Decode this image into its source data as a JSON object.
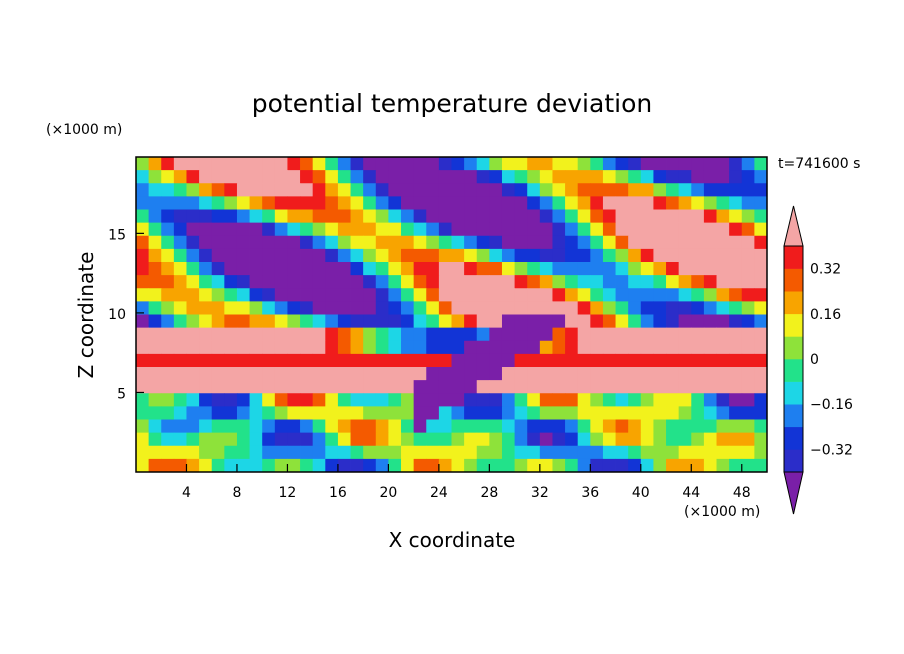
{
  "chart_data": {
    "type": "heatmap",
    "title": "potential temperature deviation",
    "xlabel": "X coordinate",
    "ylabel": "Z coordinate",
    "x_unit": "(×1000 m)",
    "y_unit": "(×1000 m)",
    "time_label": "t=741600 s",
    "xlim": [
      0,
      50
    ],
    "ylim": [
      0,
      19.8
    ],
    "x_ticks": [
      {
        "value": 4,
        "label": "4"
      },
      {
        "value": 8,
        "label": "8"
      },
      {
        "value": 12,
        "label": "12"
      },
      {
        "value": 16,
        "label": "16"
      },
      {
        "value": 20,
        "label": "20"
      },
      {
        "value": 24,
        "label": "24"
      },
      {
        "value": 28,
        "label": "28"
      },
      {
        "value": 32,
        "label": "32"
      },
      {
        "value": 36,
        "label": "36"
      },
      {
        "value": 40,
        "label": "40"
      },
      {
        "value": 44,
        "label": "44"
      },
      {
        "value": 48,
        "label": "48"
      }
    ],
    "y_ticks": [
      {
        "value": 5,
        "label": "5"
      },
      {
        "value": 10,
        "label": "10"
      },
      {
        "value": 15,
        "label": "15"
      }
    ],
    "colorbar": {
      "levels": [
        -0.4,
        -0.32,
        -0.24,
        -0.16,
        -0.08,
        0,
        0.08,
        0.16,
        0.24,
        0.32,
        0.4
      ],
      "colors": [
        "#7a1fa8",
        "#2b2dc9",
        "#1234d6",
        "#1e7ff0",
        "#1dd6e6",
        "#22e28a",
        "#8ee23a",
        "#f2f21c",
        "#f8a400",
        "#f45a00",
        "#f01c1c",
        "#f4a5a5"
      ],
      "labels": [
        {
          "value": -0.32,
          "label": "−0.32"
        },
        {
          "value": -0.16,
          "label": "−0.16"
        },
        {
          "value": 0,
          "label": "0"
        },
        {
          "value": 0.16,
          "label": "0.16"
        },
        {
          "value": 0.32,
          "label": "0.32"
        }
      ]
    },
    "legend_position": "right"
  }
}
